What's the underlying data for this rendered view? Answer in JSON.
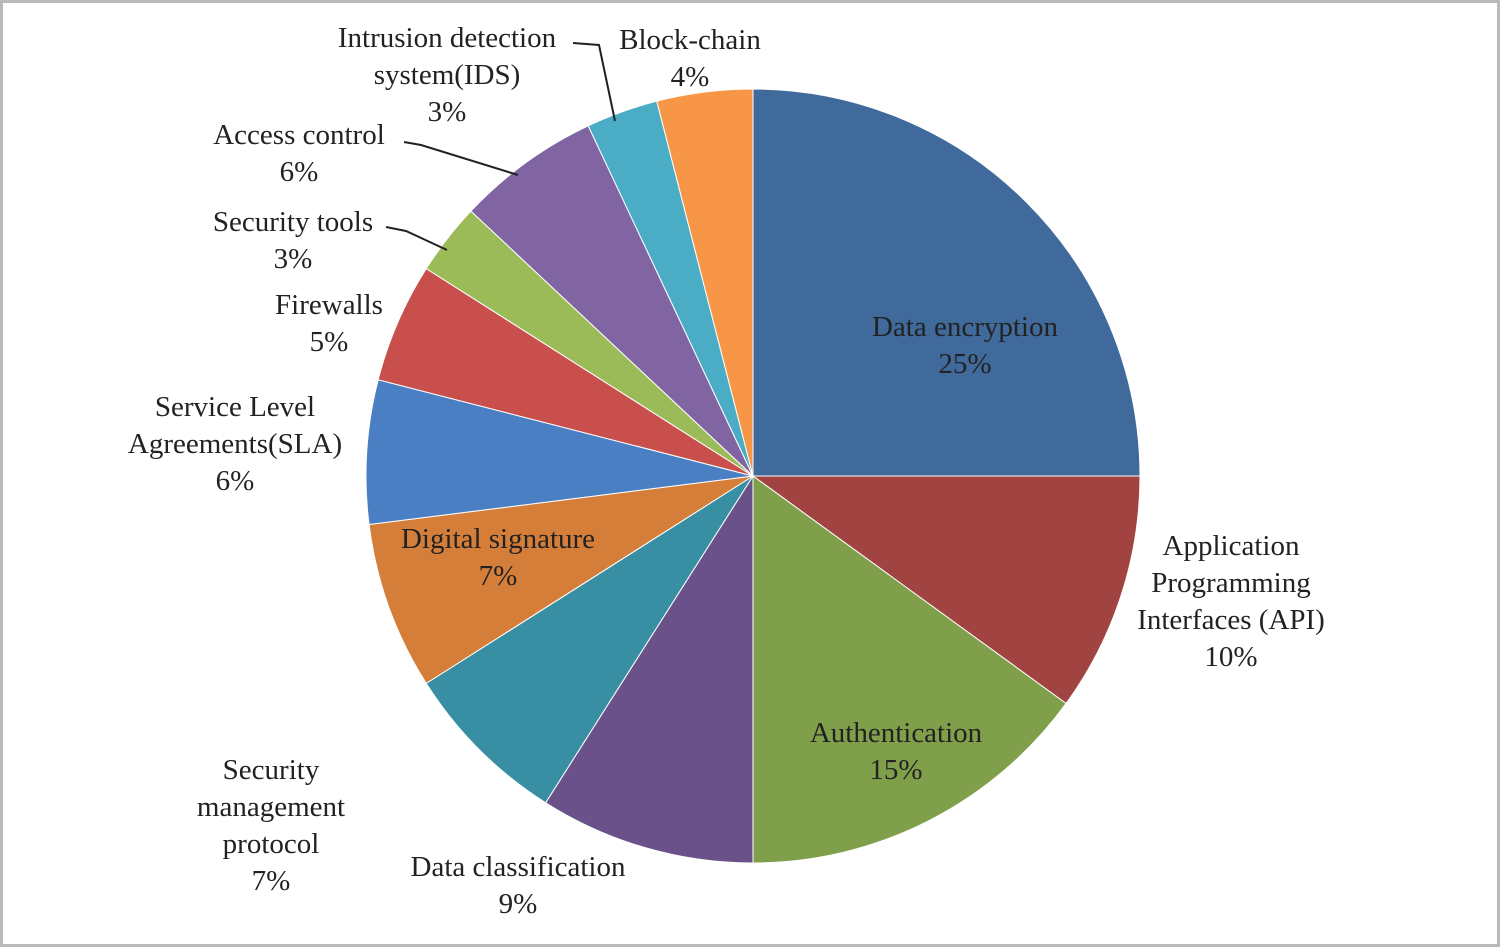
{
  "chart_data": {
    "type": "pie",
    "title": "",
    "slices": [
      {
        "label_lines": [
          "Data encryption"
        ],
        "pct_text": "25%",
        "value": 25,
        "color": "#3F6A9B"
      },
      {
        "label_lines": [
          "Application",
          "Programming",
          "Interfaces (API)"
        ],
        "pct_text": "10%",
        "value": 10,
        "color": "#A04341"
      },
      {
        "label_lines": [
          "Authentication"
        ],
        "pct_text": "15%",
        "value": 15,
        "color": "#809F4A"
      },
      {
        "label_lines": [
          "Data classification"
        ],
        "pct_text": "9%",
        "value": 9,
        "color": "#6A5189"
      },
      {
        "label_lines": [
          "Security",
          "management",
          "protocol"
        ],
        "pct_text": "7%",
        "value": 7,
        "color": "#388FA3"
      },
      {
        "label_lines": [
          "Digital signature"
        ],
        "pct_text": "7%",
        "value": 7,
        "color": "#D47E3A"
      },
      {
        "label_lines": [
          "Service Level",
          "Agreements(SLA)"
        ],
        "pct_text": "6%",
        "value": 6,
        "color": "#4A7FC4"
      },
      {
        "label_lines": [
          "Firewalls"
        ],
        "pct_text": "5%",
        "value": 5,
        "color": "#C84F4C"
      },
      {
        "label_lines": [
          "Security tools"
        ],
        "pct_text": "3%",
        "value": 3,
        "color": "#9BBB59"
      },
      {
        "label_lines": [
          "Access control"
        ],
        "pct_text": "6%",
        "value": 6,
        "color": "#8165A3"
      },
      {
        "label_lines": [
          "Intrusion detection",
          "system(IDS)"
        ],
        "pct_text": "3%",
        "value": 3,
        "color": "#4BACC6"
      },
      {
        "label_lines": [
          "Block-chain"
        ],
        "pct_text": "4%",
        "value": 4,
        "color": "#F79646"
      }
    ]
  }
}
